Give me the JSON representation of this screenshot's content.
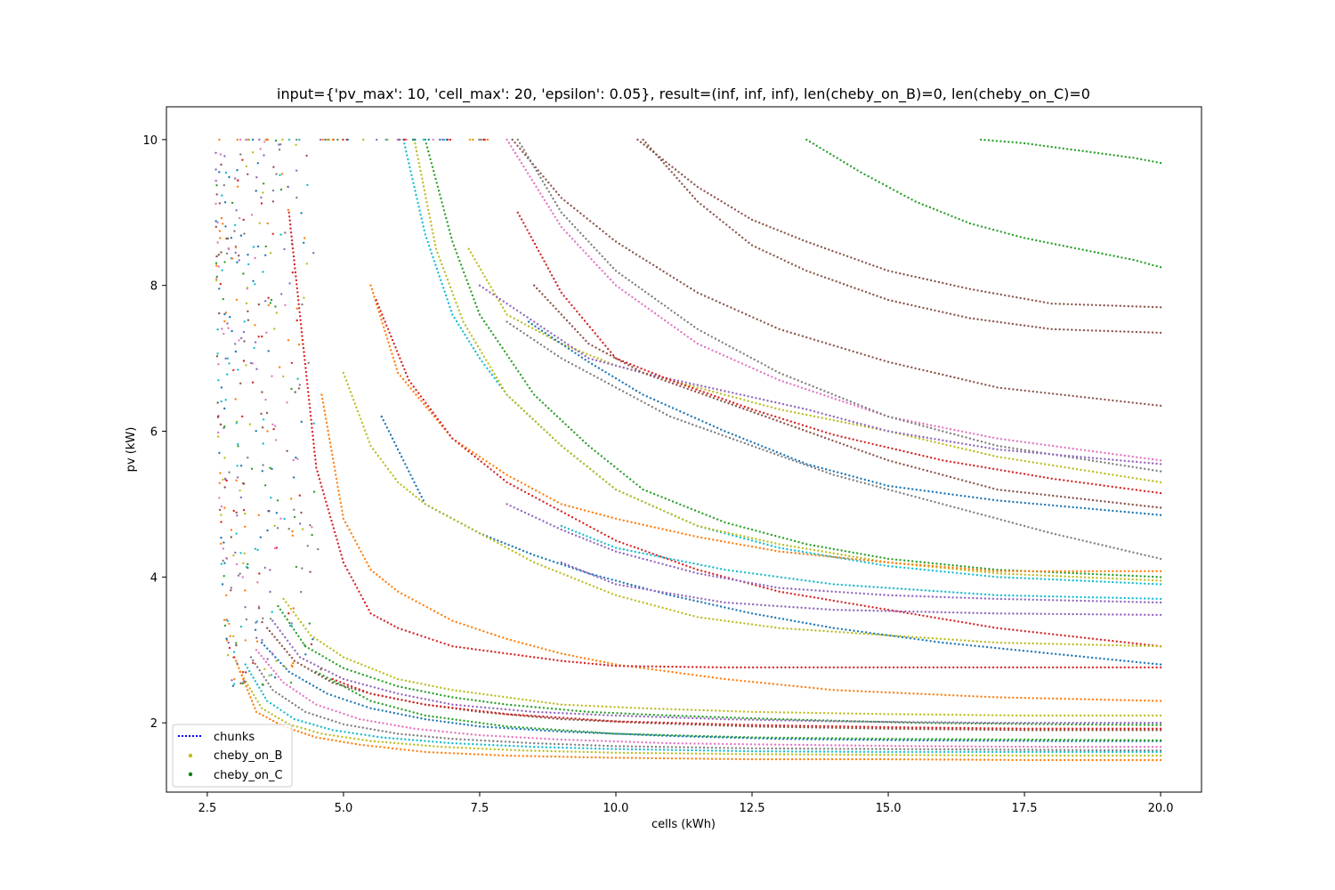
{
  "chart_data": {
    "type": "scatter",
    "title": "input={'pv_max': 10, 'cell_max': 20, 'epsilon': 0.05}, result=(inf, inf, inf), len(cheby_on_B)=0, len(cheby_on_C)=0",
    "xlabel": "cells (kWh)",
    "ylabel": "pv (kW)",
    "xlim": [
      1.75,
      20.75
    ],
    "ylim": [
      1.05,
      10.45
    ],
    "grid": false,
    "x_ticks": [
      2.5,
      5.0,
      7.5,
      10.0,
      12.5,
      15.0,
      17.5,
      20.0
    ],
    "x_tick_labels": [
      "2.5",
      "5.0",
      "7.5",
      "10.0",
      "12.5",
      "15.0",
      "17.5",
      "20.0"
    ],
    "y_ticks": [
      2,
      4,
      6,
      8,
      10
    ],
    "y_tick_labels": [
      "2",
      "4",
      "6",
      "8",
      "10"
    ],
    "legend": {
      "placement": "lower-left",
      "entries": [
        {
          "label": "chunks",
          "marker": "dotted-line",
          "color": "#0000ff"
        },
        {
          "label": "cheby_on_B",
          "marker": "dot",
          "color": "#bcbd22"
        },
        {
          "label": "cheby_on_C",
          "marker": "dot",
          "color": "#008000"
        }
      ]
    },
    "palette": [
      "#1f77b4",
      "#ff7f0e",
      "#2ca02c",
      "#d62728",
      "#9467bd",
      "#8c564b",
      "#e377c2",
      "#7f7f7f",
      "#bcbd22",
      "#17becf"
    ],
    "series": [
      {
        "color": "#2ca02c",
        "x": [
          13.5,
          14.5,
          15.5,
          16.5,
          17.5,
          18.5,
          19.5,
          20.0
        ],
        "y": [
          10.0,
          9.55,
          9.15,
          8.85,
          8.65,
          8.5,
          8.35,
          8.25
        ]
      },
      {
        "color": "#2ca02c",
        "x": [
          16.7,
          17.5,
          18.5,
          19.5,
          20.0
        ],
        "y": [
          10.0,
          9.95,
          9.85,
          9.75,
          9.68
        ]
      },
      {
        "color": "#8c564b",
        "x": [
          10.4,
          11.5,
          12.5,
          13.5,
          15.0,
          16.5,
          18.0,
          20.0
        ],
        "y": [
          10.0,
          9.35,
          8.9,
          8.6,
          8.2,
          7.95,
          7.75,
          7.7
        ]
      },
      {
        "color": "#8c564b",
        "x": [
          10.5,
          11.5,
          12.5,
          13.5,
          15.0,
          16.5,
          18.0,
          20.0
        ],
        "y": [
          10.0,
          9.15,
          8.55,
          8.2,
          7.8,
          7.55,
          7.4,
          7.35
        ]
      },
      {
        "color": "#8c564b",
        "x": [
          8.1,
          9.0,
          10.0,
          11.5,
          13.0,
          15.0,
          17.0,
          20.0
        ],
        "y": [
          10.0,
          9.2,
          8.6,
          7.9,
          7.4,
          6.95,
          6.6,
          6.35
        ]
      },
      {
        "color": "#e377c2",
        "x": [
          8.0,
          9.0,
          10.0,
          11.5,
          13.0,
          15.0,
          17.0,
          20.0
        ],
        "y": [
          10.0,
          8.8,
          8.0,
          7.2,
          6.7,
          6.2,
          5.9,
          5.6
        ]
      },
      {
        "color": "#7f7f7f",
        "x": [
          8.2,
          9.0,
          10.0,
          11.5,
          13.0,
          15.0,
          17.0,
          20.0
        ],
        "y": [
          10.0,
          9.0,
          8.2,
          7.4,
          6.8,
          6.2,
          5.8,
          5.45
        ]
      },
      {
        "color": "#bcbd22",
        "x": [
          7.3,
          8.0,
          9.0,
          10.0,
          11.5,
          13.0,
          15.0,
          17.0,
          20.0
        ],
        "y": [
          8.5,
          7.6,
          7.2,
          6.9,
          6.6,
          6.3,
          6.0,
          5.65,
          5.3
        ]
      },
      {
        "color": "#9467bd",
        "x": [
          7.5,
          8.5,
          9.5,
          10.5,
          12.0,
          13.5,
          15.0,
          17.0,
          20.0
        ],
        "y": [
          8.0,
          7.5,
          7.0,
          6.8,
          6.55,
          6.3,
          6.0,
          5.75,
          5.55
        ]
      },
      {
        "color": "#d62728",
        "x": [
          8.2,
          9.0,
          10.0,
          11.0,
          12.5,
          14.0,
          16.0,
          18.0,
          20.0
        ],
        "y": [
          9.0,
          7.9,
          7.0,
          6.7,
          6.3,
          5.95,
          5.6,
          5.35,
          5.15
        ]
      },
      {
        "color": "#1f77b4",
        "x": [
          8.4,
          9.5,
          10.5,
          12.0,
          13.5,
          15.0,
          17.0,
          20.0
        ],
        "y": [
          7.5,
          6.95,
          6.5,
          6.0,
          5.55,
          5.25,
          5.05,
          4.85
        ]
      },
      {
        "color": "#7f7f7f",
        "x": [
          8.0,
          9.0,
          10.0,
          11.0,
          12.5,
          14.0,
          16.0,
          18.0,
          20.0
        ],
        "y": [
          7.5,
          7.0,
          6.6,
          6.2,
          5.8,
          5.4,
          5.0,
          4.6,
          4.25
        ]
      },
      {
        "color": "#8c564b",
        "x": [
          8.5,
          9.5,
          10.5,
          12.0,
          13.5,
          15.0,
          17.0,
          20.0
        ],
        "y": [
          8.0,
          7.2,
          6.8,
          6.4,
          6.0,
          5.6,
          5.2,
          4.95
        ]
      },
      {
        "color": "#17becf",
        "x": [
          6.1,
          6.5,
          7.0,
          7.5,
          8.0,
          9.0,
          10.0,
          11.5,
          13.0,
          15.0,
          17.0,
          20.0
        ],
        "y": [
          10.0,
          8.7,
          7.6,
          7.0,
          6.5,
          5.8,
          5.2,
          4.7,
          4.4,
          4.15,
          4.0,
          3.9
        ]
      },
      {
        "color": "#bcbd22",
        "x": [
          6.3,
          6.7,
          7.2,
          8.0,
          9.0,
          10.0,
          11.5,
          13.0,
          15.0,
          17.0,
          20.0
        ],
        "y": [
          10.0,
          8.5,
          7.5,
          6.5,
          5.8,
          5.2,
          4.7,
          4.45,
          4.2,
          4.05,
          3.95
        ]
      },
      {
        "color": "#2ca02c",
        "x": [
          6.5,
          7.0,
          7.5,
          8.5,
          9.5,
          10.5,
          12.0,
          13.5,
          15.0,
          17.0,
          20.0
        ],
        "y": [
          10.0,
          8.6,
          7.6,
          6.5,
          5.8,
          5.2,
          4.75,
          4.45,
          4.25,
          4.1,
          4.0
        ]
      },
      {
        "color": "#ff7f0e",
        "x": [
          5.5,
          6.0,
          7.0,
          8.0,
          9.0,
          10.0,
          11.5,
          13.0,
          15.0,
          17.0,
          20.0
        ],
        "y": [
          8.0,
          6.8,
          5.9,
          5.4,
          5.0,
          4.8,
          4.55,
          4.35,
          4.2,
          4.08,
          4.08
        ]
      },
      {
        "color": "#d62728",
        "x": [
          5.6,
          6.2,
          7.0,
          8.0,
          9.0,
          10.0,
          11.5,
          13.0,
          15.0,
          17.0,
          20.0
        ],
        "y": [
          7.8,
          6.7,
          5.9,
          5.3,
          4.9,
          4.5,
          4.1,
          3.8,
          3.55,
          3.3,
          3.05
        ]
      },
      {
        "color": "#9467bd",
        "x": [
          8.0,
          9.0,
          10.0,
          11.5,
          13.0,
          15.0,
          17.0,
          20.0
        ],
        "y": [
          5.0,
          4.65,
          4.35,
          4.05,
          3.85,
          3.75,
          3.7,
          3.65
        ]
      },
      {
        "color": "#1f77b4",
        "x": [
          5.7,
          6.5,
          7.5,
          8.5,
          9.5,
          11.0,
          12.5,
          14.0,
          16.0,
          18.0,
          20.0
        ],
        "y": [
          6.2,
          5.0,
          4.6,
          4.3,
          4.05,
          3.75,
          3.5,
          3.3,
          3.1,
          2.95,
          2.8
        ]
      },
      {
        "color": "#bcbd22",
        "x": [
          5.0,
          5.5,
          6.0,
          6.5,
          7.5,
          8.5,
          10.0,
          11.5,
          13.0,
          15.0,
          17.0,
          20.0
        ],
        "y": [
          6.8,
          5.8,
          5.3,
          5.0,
          4.6,
          4.2,
          3.75,
          3.45,
          3.3,
          3.2,
          3.1,
          3.05
        ]
      },
      {
        "color": "#ff7f0e",
        "x": [
          4.6,
          5.0,
          5.5,
          6.0,
          7.0,
          8.0,
          9.0,
          10.0,
          12.0,
          14.0,
          17.0,
          20.0
        ],
        "y": [
          6.5,
          4.8,
          4.1,
          3.8,
          3.4,
          3.15,
          2.95,
          2.8,
          2.6,
          2.45,
          2.35,
          2.3
        ]
      },
      {
        "color": "#d62728",
        "x": [
          4.0,
          4.5,
          5.0,
          5.5,
          6.0,
          7.0,
          8.0,
          9.0,
          10.0,
          12.0,
          14.0,
          17.0,
          20.0
        ],
        "y": [
          9.0,
          5.5,
          4.2,
          3.5,
          3.3,
          3.05,
          2.95,
          2.85,
          2.78,
          2.76,
          2.76,
          2.76,
          2.76
        ]
      },
      {
        "color": "#bcbd22",
        "x": [
          3.9,
          4.4,
          5.0,
          6.0,
          7.0,
          8.0,
          9.0,
          10.5,
          12.5,
          15.0,
          17.5,
          20.0
        ],
        "y": [
          3.7,
          3.2,
          2.9,
          2.6,
          2.45,
          2.35,
          2.25,
          2.2,
          2.15,
          2.12,
          2.1,
          2.1
        ]
      },
      {
        "color": "#2ca02c",
        "x": [
          3.8,
          4.3,
          5.0,
          6.0,
          7.0,
          8.0,
          9.5,
          11.0,
          13.0,
          15.5,
          18.0,
          20.0
        ],
        "y": [
          3.6,
          3.05,
          2.75,
          2.5,
          2.35,
          2.25,
          2.15,
          2.1,
          2.05,
          2.0,
          1.98,
          1.97
        ]
      },
      {
        "color": "#9467bd",
        "x": [
          3.7,
          4.2,
          5.0,
          6.0,
          7.0,
          8.5,
          10.0,
          12.0,
          14.0,
          17.0,
          20.0
        ],
        "y": [
          3.4,
          2.9,
          2.6,
          2.4,
          2.25,
          2.15,
          2.1,
          2.05,
          2.02,
          2.0,
          2.0
        ]
      },
      {
        "color": "#8c564b",
        "x": [
          3.6,
          4.1,
          4.8,
          5.5,
          6.5,
          7.5,
          9.0,
          10.5,
          12.5,
          15.0,
          17.5,
          20.0
        ],
        "y": [
          3.3,
          2.85,
          2.55,
          2.4,
          2.25,
          2.15,
          2.05,
          2.0,
          1.95,
          1.92,
          1.9,
          1.9
        ]
      },
      {
        "color": "#1f77b4",
        "x": [
          3.5,
          4.0,
          4.7,
          5.5,
          6.5,
          7.5,
          9.0,
          11.0,
          13.0,
          15.5,
          18.0,
          20.0
        ],
        "y": [
          3.1,
          2.7,
          2.4,
          2.2,
          2.05,
          1.95,
          1.88,
          1.82,
          1.78,
          1.76,
          1.75,
          1.75
        ]
      },
      {
        "color": "#e377c2",
        "x": [
          3.4,
          3.9,
          4.5,
          5.3,
          6.3,
          7.5,
          9.0,
          11.0,
          13.0,
          15.5,
          18.0,
          20.0
        ],
        "y": [
          3.0,
          2.55,
          2.25,
          2.05,
          1.92,
          1.83,
          1.77,
          1.72,
          1.7,
          1.68,
          1.67,
          1.67
        ]
      },
      {
        "color": "#7f7f7f",
        "x": [
          3.3,
          3.7,
          4.3,
          5.0,
          6.0,
          7.0,
          8.5,
          10.0,
          12.5,
          15.0,
          17.5,
          20.0
        ],
        "y": [
          2.9,
          2.45,
          2.15,
          1.98,
          1.85,
          1.78,
          1.72,
          1.68,
          1.65,
          1.64,
          1.63,
          1.62
        ]
      },
      {
        "color": "#17becf",
        "x": [
          3.2,
          3.6,
          4.1,
          4.8,
          5.7,
          7.0,
          8.5,
          10.0,
          12.5,
          15.0,
          17.5,
          20.0
        ],
        "y": [
          2.8,
          2.3,
          2.05,
          1.9,
          1.8,
          1.72,
          1.67,
          1.64,
          1.61,
          1.6,
          1.6,
          1.6
        ]
      },
      {
        "color": "#bcbd22",
        "x": [
          3.1,
          3.5,
          4.0,
          4.6,
          5.5,
          6.8,
          8.3,
          10.0,
          12.5,
          15.0,
          17.5,
          20.0
        ],
        "y": [
          2.7,
          2.2,
          1.98,
          1.85,
          1.75,
          1.67,
          1.62,
          1.59,
          1.57,
          1.56,
          1.55,
          1.55
        ]
      },
      {
        "color": "#ff7f0e",
        "x": [
          3.0,
          3.4,
          3.9,
          4.5,
          5.3,
          6.5,
          8.0,
          10.0,
          12.5,
          15.0,
          17.5,
          20.0
        ],
        "y": [
          2.9,
          2.15,
          1.95,
          1.8,
          1.7,
          1.6,
          1.55,
          1.52,
          1.5,
          1.5,
          1.49,
          1.49
        ]
      },
      {
        "color": "#d62728",
        "x": [
          4.8,
          5.5,
          6.5,
          8.0,
          10.0,
          12.5,
          15.0,
          17.5,
          20.0
        ],
        "y": [
          2.6,
          2.4,
          2.25,
          2.12,
          2.02,
          1.97,
          1.94,
          1.92,
          1.92
        ]
      },
      {
        "color": "#2ca02c",
        "x": [
          4.5,
          5.5,
          6.5,
          8.0,
          10.0,
          12.5,
          15.0,
          17.5,
          20.0
        ],
        "y": [
          2.7,
          2.3,
          2.1,
          1.95,
          1.85,
          1.8,
          1.78,
          1.77,
          1.76
        ]
      },
      {
        "color": "#9467bd",
        "x": [
          9.0,
          10.0,
          12.0,
          14.0,
          17.0,
          20.0
        ],
        "y": [
          4.2,
          3.9,
          3.65,
          3.55,
          3.5,
          3.48
        ]
      },
      {
        "color": "#17becf",
        "x": [
          9.0,
          10.0,
          12.0,
          14.0,
          17.0,
          20.0
        ],
        "y": [
          4.7,
          4.4,
          4.1,
          3.9,
          3.75,
          3.7
        ]
      }
    ],
    "scatter_fringe": {
      "x_range": [
        2.6,
        4.6
      ],
      "y_range": [
        2.5,
        10.0
      ],
      "comment": "dense scattered multi-colour points near left edge"
    }
  }
}
